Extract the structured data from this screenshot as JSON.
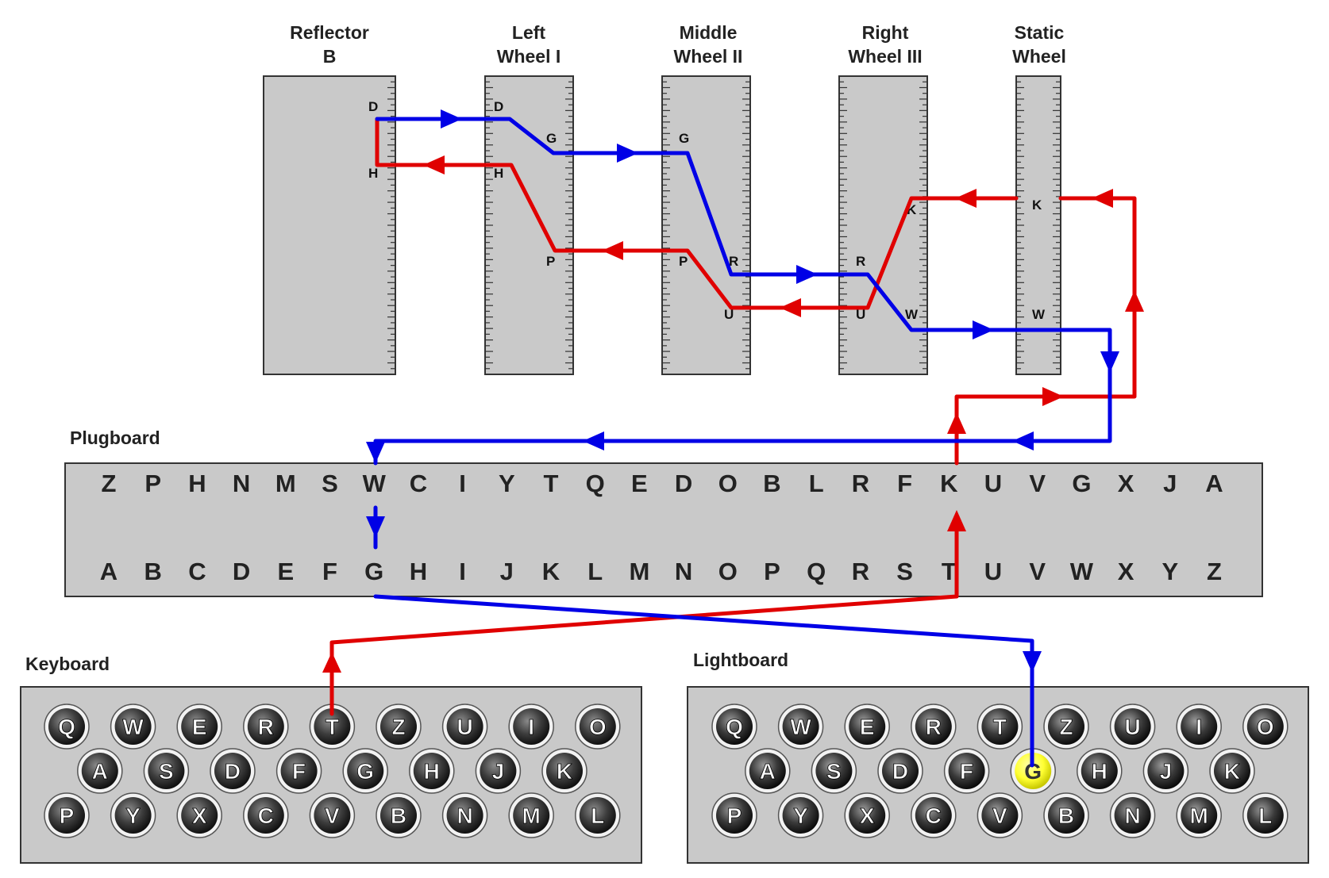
{
  "colors": {
    "forward_path": "#e00000",
    "return_path": "#0000e6",
    "panel_fill": "#c9c9c9",
    "panel_stroke": "#333333",
    "lamp_on": "#ffff33"
  },
  "wheels": [
    {
      "id": "reflector",
      "title_line1": "Reflector",
      "title_line2": "B"
    },
    {
      "id": "left",
      "title_line1": "Left",
      "title_line2": "Wheel I"
    },
    {
      "id": "middle",
      "title_line1": "Middle",
      "title_line2": "Wheel II"
    },
    {
      "id": "right",
      "title_line1": "Right",
      "title_line2": "Wheel III"
    },
    {
      "id": "static",
      "title_line1": "Static",
      "title_line2": "Wheel"
    }
  ],
  "pin_labels": {
    "reflector": [
      "D",
      "H"
    ],
    "left": [
      "D",
      "G",
      "H",
      "P"
    ],
    "middle": [
      "G",
      "P",
      "R",
      "U"
    ],
    "right": [
      "K",
      "R",
      "U",
      "W"
    ],
    "static": [
      "K",
      "W"
    ]
  },
  "plugboard": {
    "title": "Plugboard",
    "top_row": [
      "Z",
      "P",
      "H",
      "N",
      "M",
      "S",
      "W",
      "C",
      "I",
      "Y",
      "T",
      "Q",
      "E",
      "D",
      "O",
      "B",
      "L",
      "R",
      "F",
      "K",
      "U",
      "V",
      "G",
      "X",
      "J",
      "A"
    ],
    "bottom_row": [
      "A",
      "B",
      "C",
      "D",
      "E",
      "F",
      "G",
      "H",
      "I",
      "J",
      "K",
      "L",
      "M",
      "N",
      "O",
      "P",
      "Q",
      "R",
      "S",
      "T",
      "U",
      "V",
      "W",
      "X",
      "Y",
      "Z"
    ]
  },
  "keyboard": {
    "title": "Keyboard",
    "rows": [
      [
        "Q",
        "W",
        "E",
        "R",
        "T",
        "Z",
        "U",
        "I",
        "O"
      ],
      [
        "A",
        "S",
        "D",
        "F",
        "G",
        "H",
        "J",
        "K"
      ],
      [
        "P",
        "Y",
        "X",
        "C",
        "V",
        "B",
        "N",
        "M",
        "L"
      ]
    ],
    "pressed_key": "T"
  },
  "lightboard": {
    "title": "Lightboard",
    "rows": [
      [
        "Q",
        "W",
        "E",
        "R",
        "T",
        "Z",
        "U",
        "I",
        "O"
      ],
      [
        "A",
        "S",
        "D",
        "F",
        "G",
        "H",
        "J",
        "K"
      ],
      [
        "P",
        "Y",
        "X",
        "C",
        "V",
        "B",
        "N",
        "M",
        "L"
      ]
    ],
    "lit_lamp": "G"
  }
}
